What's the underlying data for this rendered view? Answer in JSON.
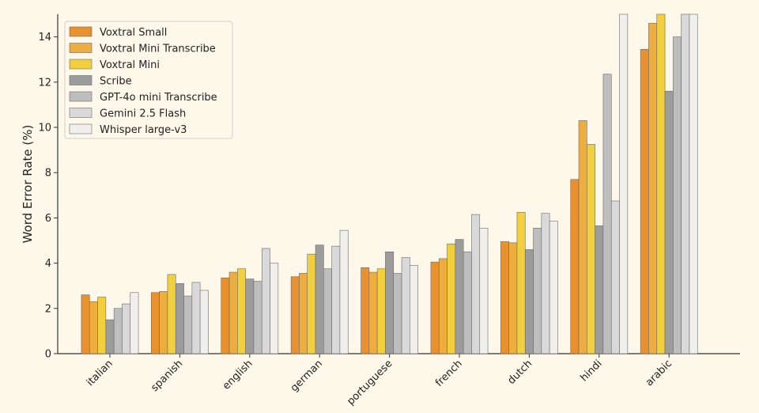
{
  "chart_data": {
    "type": "bar",
    "xlabel": "",
    "ylabel": "Word Error Rate (%)",
    "ylim": [
      0,
      15
    ],
    "yticks": [
      0,
      2,
      4,
      6,
      8,
      10,
      12,
      14
    ],
    "grid": false,
    "legend_position": "top-left",
    "categories": [
      "italian",
      "spanish",
      "english",
      "german",
      "portuguese",
      "french",
      "dutch",
      "hindi",
      "arabic"
    ],
    "series": [
      {
        "name": "Voxtral Small",
        "color": "#e8912e",
        "values": [
          2.6,
          2.7,
          3.35,
          3.4,
          3.8,
          4.05,
          4.95,
          7.7,
          13.45
        ]
      },
      {
        "name": "Voxtral Mini Transcribe",
        "color": "#eead3f",
        "values": [
          2.3,
          2.75,
          3.6,
          3.55,
          3.6,
          4.2,
          4.9,
          10.3,
          14.6
        ]
      },
      {
        "name": "Voxtral Mini",
        "color": "#f2cf3c",
        "values": [
          2.5,
          3.5,
          3.75,
          4.4,
          3.75,
          4.85,
          6.25,
          9.25,
          15.4
        ]
      },
      {
        "name": "Scribe",
        "color": "#9c9c9c",
        "values": [
          1.5,
          3.1,
          3.3,
          4.8,
          4.5,
          5.05,
          4.6,
          5.65,
          11.6
        ]
      },
      {
        "name": "GPT-4o mini Transcribe",
        "color": "#bebebe",
        "values": [
          2.0,
          2.55,
          3.2,
          3.75,
          3.55,
          4.5,
          5.55,
          12.35,
          14.0
        ]
      },
      {
        "name": "Gemini 2.5 Flash",
        "color": "#d9d9d9",
        "values": [
          2.2,
          3.15,
          4.65,
          4.75,
          4.25,
          6.15,
          6.2,
          6.75,
          16.0
        ]
      },
      {
        "name": "Whisper large-v3",
        "color": "#f0efed",
        "values": [
          2.7,
          2.8,
          4.0,
          5.45,
          3.9,
          5.55,
          5.85,
          16.0,
          16.0
        ]
      }
    ]
  }
}
